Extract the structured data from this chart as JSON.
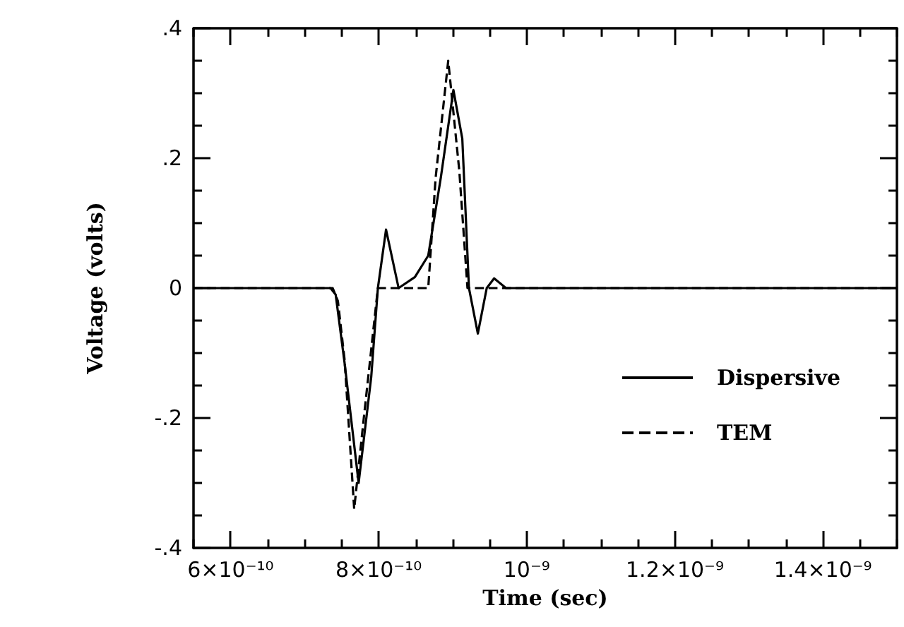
{
  "chart_data": {
    "type": "line",
    "xlabel": "Time (sec)",
    "ylabel": "Voltage (volts)",
    "xlim": [
      5.5e-10,
      1.5e-09
    ],
    "xticks": [
      {
        "value": 6e-10,
        "label": "6×10⁻¹⁰"
      },
      {
        "value": 8e-10,
        "label": "8×10⁻¹⁰"
      },
      {
        "value": 1e-09,
        "label": "10⁻⁹"
      },
      {
        "value": 1.2e-09,
        "label": "1.2×10⁻⁹"
      },
      {
        "value": 1.4e-09,
        "label": "1.4×10⁻⁹"
      }
    ],
    "ylim": [
      -0.4,
      0.4
    ],
    "yticks": [
      {
        "value": -0.4,
        "label": "-.4"
      },
      {
        "value": -0.2,
        "label": "-.2"
      },
      {
        "value": 0,
        "label": "0"
      },
      {
        "value": 0.2,
        "label": ".2"
      },
      {
        "value": 0.4,
        "label": ".4"
      }
    ],
    "grid": false,
    "legend": "right",
    "marker": "none",
    "series": [
      {
        "name": "Dispersive",
        "color": "#000000",
        "line_style": "solid",
        "x": [
          5.5e-10,
          7.35e-10,
          7.42e-10,
          7.54e-10,
          7.73e-10,
          7.9e-10,
          7.99e-10,
          8.1e-10,
          8.27e-10,
          8.49e-10,
          8.67e-10,
          8.84e-10,
          9.01e-10,
          9.13e-10,
          9.22e-10,
          9.34e-10,
          9.46e-10,
          9.56e-10,
          9.72e-10,
          1.5e-09
        ],
        "values": [
          0,
          0,
          -0.01,
          -0.115,
          -0.3,
          -0.137,
          0,
          0.09,
          0,
          0.017,
          0.05,
          0.17,
          0.305,
          0.23,
          0,
          -0.07,
          0,
          0.015,
          0,
          0
        ]
      },
      {
        "name": "TEM",
        "color": "#000000",
        "line_style": "dashed",
        "x": [
          5.5e-10,
          7.38e-10,
          7.45e-10,
          7.54e-10,
          7.67e-10,
          7.8e-10,
          7.99e-10,
          8.67e-10,
          8.77e-10,
          8.94e-10,
          9.09e-10,
          9.2e-10,
          1.5e-09
        ],
        "values": [
          0,
          0,
          -0.02,
          -0.11,
          -0.34,
          -0.2,
          0,
          0,
          0.17,
          0.35,
          0.18,
          0,
          0
        ]
      }
    ]
  }
}
